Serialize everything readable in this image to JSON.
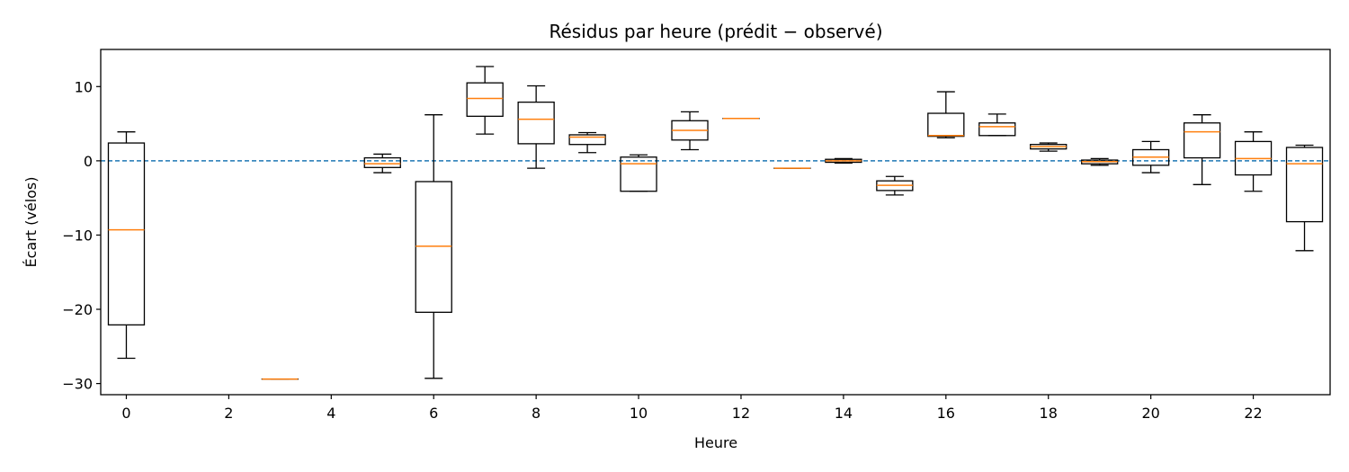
{
  "chart_data": {
    "type": "boxplot",
    "title": "Résidus par heure (prédit − observé)",
    "xlabel": "Heure",
    "ylabel": "Écart (vélos)",
    "xlim": [
      -0.5,
      23.5
    ],
    "ylim": [
      -31.5,
      15
    ],
    "xticks": [
      0,
      2,
      4,
      6,
      8,
      10,
      12,
      14,
      16,
      18,
      20,
      22
    ],
    "yticks": [
      -30,
      -20,
      -10,
      0,
      10
    ],
    "reference_line": {
      "y": 0,
      "style": "dashed",
      "color": "#1f77b4"
    },
    "grid": false,
    "colors": {
      "box": "#000000",
      "median": "#ff7f0e",
      "reference": "#1f77b4"
    },
    "boxes": [
      {
        "hour": 0,
        "whisker_low": -26.6,
        "q1": -22.1,
        "median": -9.3,
        "q3": 2.4,
        "whisker_high": 3.9
      },
      {
        "hour": 3,
        "whisker_low": -29.4,
        "q1": -29.4,
        "median": -29.4,
        "q3": -29.4,
        "whisker_high": -29.4
      },
      {
        "hour": 5,
        "whisker_low": -1.6,
        "q1": -0.9,
        "median": -0.4,
        "q3": 0.4,
        "whisker_high": 0.9
      },
      {
        "hour": 6,
        "whisker_low": -29.3,
        "q1": -20.4,
        "median": -11.5,
        "q3": -2.8,
        "whisker_high": 6.2
      },
      {
        "hour": 7,
        "whisker_low": 3.6,
        "q1": 6.0,
        "median": 8.4,
        "q3": 10.5,
        "whisker_high": 12.7
      },
      {
        "hour": 8,
        "whisker_low": -1.0,
        "q1": 2.3,
        "median": 5.6,
        "q3": 7.9,
        "whisker_high": 10.1
      },
      {
        "hour": 9,
        "whisker_low": 1.1,
        "q1": 2.2,
        "median": 3.2,
        "q3": 3.5,
        "whisker_high": 3.8
      },
      {
        "hour": 10,
        "whisker_low": -4.1,
        "q1": -4.1,
        "median": -0.4,
        "q3": 0.5,
        "whisker_high": 0.8
      },
      {
        "hour": 11,
        "whisker_low": 1.5,
        "q1": 2.8,
        "median": 4.1,
        "q3": 5.4,
        "whisker_high": 6.6
      },
      {
        "hour": 12,
        "whisker_low": 5.7,
        "q1": 5.7,
        "median": 5.7,
        "q3": 5.7,
        "whisker_high": 5.7
      },
      {
        "hour": 13,
        "whisker_low": -1.0,
        "q1": -1.0,
        "median": -1.0,
        "q3": -1.0,
        "whisker_high": -1.0
      },
      {
        "hour": 14,
        "whisker_low": -0.3,
        "q1": -0.2,
        "median": 0.0,
        "q3": 0.2,
        "whisker_high": 0.3
      },
      {
        "hour": 15,
        "whisker_low": -4.6,
        "q1": -4.0,
        "median": -3.3,
        "q3": -2.7,
        "whisker_high": -2.1
      },
      {
        "hour": 16,
        "whisker_low": 3.1,
        "q1": 3.3,
        "median": 3.4,
        "q3": 6.4,
        "whisker_high": 9.3
      },
      {
        "hour": 17,
        "whisker_low": 3.4,
        "q1": 3.4,
        "median": 4.6,
        "q3": 5.1,
        "whisker_high": 6.3
      },
      {
        "hour": 18,
        "whisker_low": 1.3,
        "q1": 1.6,
        "median": 1.9,
        "q3": 2.2,
        "whisker_high": 2.4
      },
      {
        "hour": 19,
        "whisker_low": -0.6,
        "q1": -0.4,
        "median": -0.1,
        "q3": 0.1,
        "whisker_high": 0.3
      },
      {
        "hour": 20,
        "whisker_low": -1.6,
        "q1": -0.6,
        "median": 0.5,
        "q3": 1.5,
        "whisker_high": 2.6
      },
      {
        "hour": 21,
        "whisker_low": -3.2,
        "q1": 0.4,
        "median": 3.9,
        "q3": 5.1,
        "whisker_high": 6.2
      },
      {
        "hour": 22,
        "whisker_low": -4.1,
        "q1": -1.9,
        "median": 0.3,
        "q3": 2.6,
        "whisker_high": 3.9
      },
      {
        "hour": 23,
        "whisker_low": -12.1,
        "q1": -8.2,
        "median": -0.4,
        "q3": 1.8,
        "whisker_high": 2.1
      }
    ]
  }
}
